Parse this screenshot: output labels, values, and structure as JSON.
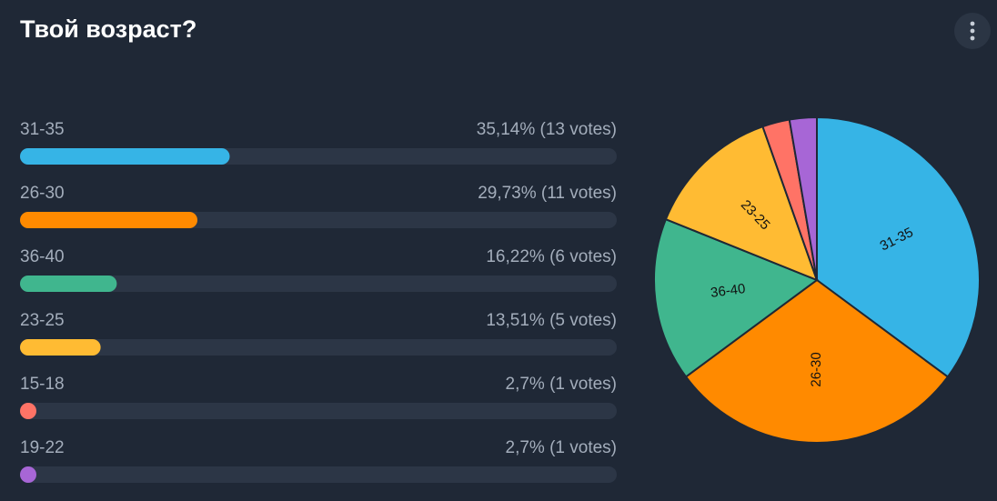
{
  "chart_data": {
    "type": "pie",
    "title": "Твой возраст?",
    "categories": [
      "31-35",
      "26-30",
      "36-40",
      "23-25",
      "15-18",
      "19-22"
    ],
    "values": [
      35.14,
      29.73,
      16.22,
      13.51,
      2.7,
      2.7
    ],
    "value_labels": [
      "35,14% (13 votes)",
      "29,73% (11 votes)",
      "16,22% (6 votes)",
      "13,51% (5 votes)",
      "2,7% (1 votes)",
      "2,7% (1 votes)"
    ],
    "colors": [
      "#36b4e6",
      "#ff8a00",
      "#40b68e",
      "#ffbb33",
      "#ff7366",
      "#a766d6"
    ]
  }
}
